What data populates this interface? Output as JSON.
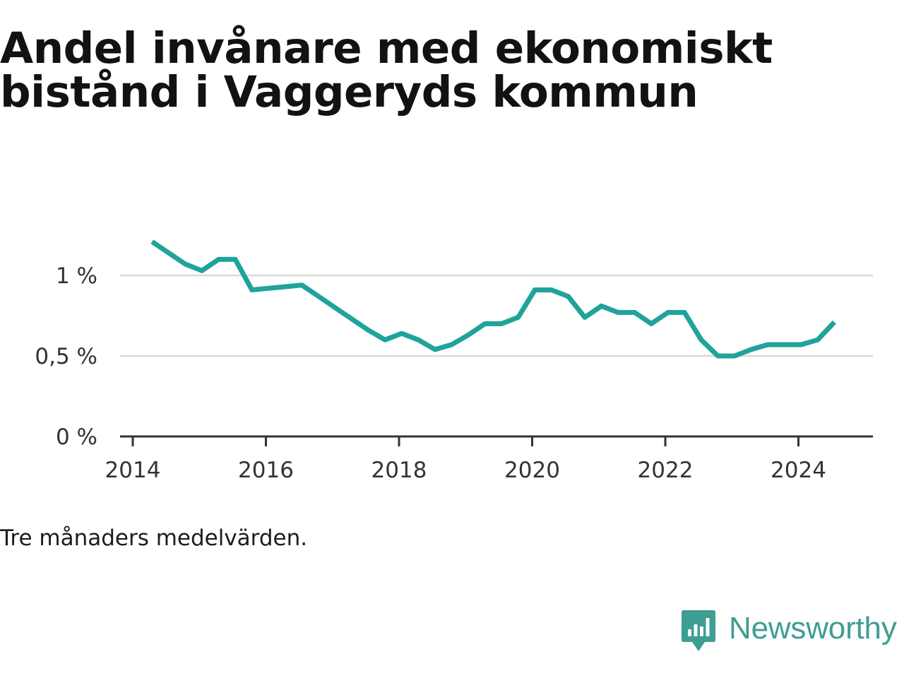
{
  "title": {
    "line1": "Andel invånare med ekonomiskt",
    "line2": "bistånd i Vaggeryds kommun"
  },
  "note": "Tre månaders medelvärden.",
  "brand": {
    "name": "Newsworthy",
    "icon": "newsworthy-chart-bubble-icon"
  },
  "colors": {
    "line": "#1fa39a",
    "grid": "#d9d9d9",
    "axis": "#333333",
    "text": "#333333",
    "brand": "#3d9e92"
  },
  "chart_data": {
    "type": "line",
    "title": "Andel invånare med ekonomiskt bistånd i Vaggeryds kommun",
    "xlabel": "",
    "ylabel": "",
    "xlim": [
      2013.8,
      2025.1
    ],
    "ylim": [
      0,
      1.0
    ],
    "x_ticks": [
      {
        "value": 2014,
        "label": "2014"
      },
      {
        "value": 2016,
        "label": "2016"
      },
      {
        "value": 2018,
        "label": "2018"
      },
      {
        "value": 2020,
        "label": "2020"
      },
      {
        "value": 2022,
        "label": "2022"
      },
      {
        "value": 2024,
        "label": "2024"
      }
    ],
    "y_ticks": [
      {
        "value": 0,
        "label": "0 %"
      },
      {
        "value": 0.5,
        "label": "0,5 %"
      },
      {
        "value": 1.0,
        "label": "1 %"
      }
    ],
    "grid": "horizontal",
    "series": [
      {
        "name": "Andel invånare med ekonomiskt bistånd",
        "x": [
          2014.29,
          2014.54,
          2014.79,
          2015.04,
          2015.29,
          2015.54,
          2015.79,
          2016.04,
          2016.29,
          2016.54,
          2016.79,
          2017.04,
          2017.29,
          2017.54,
          2017.79,
          2018.04,
          2018.29,
          2018.54,
          2018.79,
          2019.04,
          2019.29,
          2019.54,
          2019.79,
          2020.04,
          2020.29,
          2020.54,
          2020.79,
          2021.04,
          2021.29,
          2021.54,
          2021.79,
          2022.04,
          2022.29,
          2022.54,
          2022.79,
          2023.04,
          2023.29,
          2023.54,
          2023.79,
          2024.04,
          2024.29,
          2024.54
        ],
        "values": [
          1.21,
          1.14,
          1.07,
          1.03,
          1.1,
          1.1,
          0.91,
          0.92,
          0.93,
          0.94,
          0.87,
          0.8,
          0.73,
          0.66,
          0.6,
          0.64,
          0.6,
          0.54,
          0.57,
          0.63,
          0.7,
          0.7,
          0.74,
          0.91,
          0.91,
          0.87,
          0.74,
          0.81,
          0.77,
          0.77,
          0.7,
          0.77,
          0.77,
          0.6,
          0.5,
          0.5,
          0.54,
          0.57,
          0.57,
          0.57,
          0.6,
          0.71
        ]
      }
    ]
  }
}
